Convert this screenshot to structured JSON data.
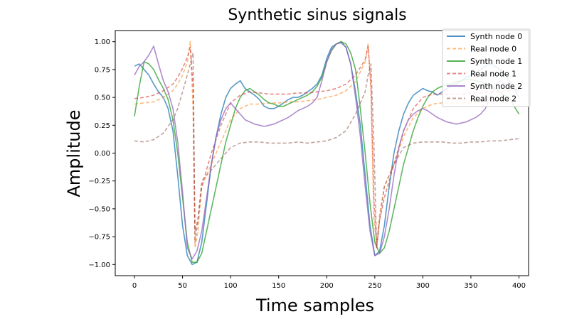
{
  "chart_data": {
    "type": "line",
    "title": "Synthetic sinus signals",
    "xlabel": "Time samples",
    "ylabel": "Amplitude",
    "xlim": [
      -20,
      410
    ],
    "ylim": [
      -1.1,
      1.1
    ],
    "xticks": [
      0,
      50,
      100,
      150,
      200,
      250,
      300,
      350,
      400
    ],
    "yticks": [
      -1.0,
      -0.75,
      -0.5,
      -0.25,
      0.0,
      0.25,
      0.5,
      0.75,
      1.0
    ],
    "xtick_labels": [
      "0",
      "50",
      "100",
      "150",
      "200",
      "250",
      "300",
      "350",
      "400"
    ],
    "ytick_labels": [
      "−1.00",
      "−0.75",
      "−0.50",
      "−0.25",
      "0.00",
      "0.25",
      "0.50",
      "0.75",
      "1.00"
    ],
    "grid": false,
    "legend_position": "top-right",
    "series": [
      {
        "name": "Synth node 0",
        "color": "#1f77b4",
        "style": "solid",
        "x": [
          0,
          5,
          10,
          15,
          20,
          25,
          30,
          35,
          40,
          45,
          50,
          55,
          60,
          65,
          70,
          75,
          80,
          85,
          90,
          95,
          100,
          105,
          110,
          115,
          120,
          125,
          130,
          135,
          140,
          145,
          150,
          155,
          160,
          165,
          170,
          175,
          180,
          185,
          190,
          195,
          200,
          205,
          210,
          215,
          220,
          225,
          230,
          235,
          240,
          245,
          250,
          255,
          260,
          265,
          270,
          275,
          280,
          285,
          290,
          295,
          300,
          305,
          310,
          315,
          320,
          325,
          330,
          335,
          340,
          345,
          350,
          355,
          360,
          365,
          370,
          375,
          380,
          385,
          390,
          395,
          400
        ],
        "values": [
          0.78,
          0.8,
          0.75,
          0.7,
          0.62,
          0.55,
          0.5,
          0.4,
          0.2,
          -0.2,
          -0.65,
          -0.92,
          -1.0,
          -0.98,
          -0.8,
          -0.45,
          -0.1,
          0.15,
          0.35,
          0.5,
          0.58,
          0.62,
          0.65,
          0.58,
          0.55,
          0.52,
          0.48,
          0.42,
          0.4,
          0.4,
          0.42,
          0.45,
          0.48,
          0.5,
          0.5,
          0.52,
          0.55,
          0.58,
          0.62,
          0.7,
          0.85,
          0.95,
          0.98,
          1.0,
          0.95,
          0.8,
          0.55,
          0.25,
          -0.2,
          -0.65,
          -0.92,
          -0.88,
          -0.65,
          -0.3,
          0.0,
          0.2,
          0.35,
          0.45,
          0.52,
          0.55,
          0.58,
          0.56,
          0.55,
          0.52,
          0.55,
          0.58,
          0.6,
          0.62,
          0.65,
          0.68,
          0.7,
          0.72,
          0.75,
          0.78,
          0.8,
          0.78,
          0.75,
          0.7,
          0.65,
          0.58,
          0.5
        ]
      },
      {
        "name": "Real node 0",
        "color": "#ff7f0e",
        "style": "dashed",
        "x": [
          0,
          10,
          20,
          30,
          40,
          45,
          50,
          55,
          58,
          61,
          63,
          66,
          70,
          80,
          90,
          100,
          110,
          120,
          130,
          140,
          150,
          160,
          170,
          180,
          190,
          200,
          210,
          220,
          230,
          240,
          243,
          246,
          249,
          252,
          255,
          260,
          270,
          280,
          290,
          300,
          310,
          320,
          330,
          340,
          350,
          360,
          370,
          380,
          390,
          400
        ],
        "values": [
          0.44,
          0.45,
          0.46,
          0.5,
          0.56,
          0.62,
          0.7,
          0.82,
          1.0,
          0.4,
          -0.85,
          -0.7,
          -0.3,
          -0.1,
          0.1,
          0.3,
          0.4,
          0.44,
          0.44,
          0.45,
          0.45,
          0.46,
          0.46,
          0.47,
          0.48,
          0.5,
          0.52,
          0.56,
          0.64,
          0.82,
          0.98,
          0.6,
          -0.6,
          -0.8,
          -0.55,
          -0.3,
          -0.1,
          0.15,
          0.32,
          0.4,
          0.44,
          0.45,
          0.45,
          0.45,
          0.45,
          0.46,
          0.46,
          0.47,
          0.48,
          0.5
        ]
      },
      {
        "name": "Synth node 1",
        "color": "#2ca02c",
        "style": "solid",
        "x": [
          0,
          5,
          10,
          15,
          20,
          25,
          30,
          35,
          40,
          45,
          50,
          55,
          60,
          65,
          70,
          75,
          80,
          85,
          90,
          95,
          100,
          105,
          110,
          115,
          120,
          125,
          130,
          135,
          140,
          145,
          150,
          155,
          160,
          165,
          170,
          175,
          180,
          185,
          190,
          195,
          200,
          205,
          210,
          215,
          220,
          225,
          230,
          235,
          240,
          245,
          250,
          255,
          260,
          265,
          270,
          275,
          280,
          285,
          290,
          295,
          300,
          305,
          310,
          315,
          320,
          325,
          330,
          335,
          340,
          345,
          350,
          355,
          360,
          365,
          370,
          375,
          380,
          385,
          390,
          395,
          400
        ],
        "values": [
          0.33,
          0.6,
          0.82,
          0.8,
          0.75,
          0.66,
          0.58,
          0.48,
          0.3,
          0.0,
          -0.4,
          -0.8,
          -0.98,
          -0.98,
          -0.9,
          -0.7,
          -0.5,
          -0.3,
          -0.1,
          0.1,
          0.25,
          0.4,
          0.5,
          0.56,
          0.58,
          0.55,
          0.52,
          0.48,
          0.45,
          0.44,
          0.42,
          0.42,
          0.44,
          0.46,
          0.48,
          0.5,
          0.52,
          0.55,
          0.6,
          0.68,
          0.82,
          0.92,
          0.98,
          1.0,
          0.98,
          0.9,
          0.75,
          0.4,
          0.0,
          -0.45,
          -0.8,
          -0.9,
          -0.85,
          -0.7,
          -0.5,
          -0.3,
          -0.1,
          0.05,
          0.2,
          0.32,
          0.42,
          0.5,
          0.55,
          0.58,
          0.6,
          0.62,
          0.62,
          0.64,
          0.65,
          0.66,
          0.66,
          0.65,
          0.64,
          0.62,
          0.6,
          0.58,
          0.55,
          0.52,
          0.5,
          0.42,
          0.35
        ]
      },
      {
        "name": "Real node 1",
        "color": "#d62728",
        "style": "dashed",
        "x": [
          0,
          10,
          20,
          30,
          40,
          45,
          50,
          55,
          58,
          61,
          63,
          66,
          70,
          80,
          90,
          100,
          110,
          120,
          130,
          140,
          150,
          160,
          170,
          180,
          190,
          200,
          210,
          220,
          230,
          240,
          243,
          246,
          249,
          252,
          255,
          260,
          270,
          280,
          290,
          300,
          310,
          320,
          330,
          340,
          350,
          360,
          370,
          380,
          390,
          400
        ],
        "values": [
          0.49,
          0.5,
          0.52,
          0.56,
          0.62,
          0.68,
          0.76,
          0.86,
          0.95,
          0.6,
          -0.7,
          -0.6,
          -0.3,
          0.0,
          0.25,
          0.45,
          0.52,
          0.55,
          0.54,
          0.53,
          0.53,
          0.53,
          0.54,
          0.54,
          0.55,
          0.56,
          0.58,
          0.62,
          0.7,
          0.84,
          0.96,
          0.6,
          -0.4,
          -0.85,
          -0.6,
          -0.4,
          -0.1,
          0.2,
          0.4,
          0.5,
          0.53,
          0.53,
          0.53,
          0.53,
          0.54,
          0.54,
          0.55,
          0.55,
          0.56,
          0.57
        ]
      },
      {
        "name": "Synth node 2",
        "color": "#9467bd",
        "style": "solid",
        "x": [
          0,
          5,
          10,
          15,
          20,
          25,
          30,
          35,
          40,
          45,
          50,
          55,
          60,
          65,
          70,
          75,
          80,
          85,
          90,
          95,
          100,
          105,
          110,
          115,
          120,
          125,
          130,
          135,
          140,
          145,
          150,
          155,
          160,
          165,
          170,
          175,
          180,
          185,
          190,
          195,
          200,
          205,
          210,
          215,
          220,
          225,
          230,
          235,
          240,
          245,
          250,
          255,
          260,
          265,
          270,
          275,
          280,
          285,
          290,
          295,
          300,
          305,
          310,
          315,
          320,
          325,
          330,
          335,
          340,
          345,
          350,
          355,
          360,
          365,
          370,
          375,
          380,
          385,
          390,
          395,
          400
        ],
        "values": [
          0.7,
          0.78,
          0.82,
          0.88,
          0.96,
          0.8,
          0.65,
          0.55,
          0.4,
          0.1,
          -0.35,
          -0.85,
          -0.95,
          -0.88,
          -0.7,
          -0.4,
          -0.1,
          0.15,
          0.3,
          0.4,
          0.45,
          0.4,
          0.35,
          0.3,
          0.28,
          0.26,
          0.25,
          0.24,
          0.25,
          0.26,
          0.28,
          0.3,
          0.32,
          0.35,
          0.38,
          0.4,
          0.42,
          0.45,
          0.5,
          0.65,
          0.82,
          0.93,
          0.98,
          0.99,
          0.95,
          0.8,
          0.5,
          0.15,
          -0.3,
          -0.7,
          -0.92,
          -0.9,
          -0.75,
          -0.5,
          -0.2,
          0.05,
          0.2,
          0.3,
          0.35,
          0.38,
          0.4,
          0.38,
          0.35,
          0.32,
          0.3,
          0.28,
          0.27,
          0.26,
          0.27,
          0.28,
          0.3,
          0.32,
          0.35,
          0.4,
          0.5,
          0.6,
          0.65,
          0.62,
          0.6,
          0.58,
          0.56
        ]
      },
      {
        "name": "Real node 2",
        "color": "#8c564b",
        "style": "dashed",
        "x": [
          0,
          10,
          20,
          30,
          40,
          45,
          50,
          55,
          58,
          61,
          63,
          66,
          70,
          80,
          90,
          100,
          110,
          120,
          130,
          140,
          150,
          160,
          170,
          180,
          190,
          200,
          210,
          220,
          230,
          240,
          243,
          246,
          249,
          252,
          255,
          260,
          270,
          280,
          290,
          300,
          310,
          320,
          330,
          340,
          350,
          360,
          370,
          380,
          390,
          400
        ],
        "values": [
          0.11,
          0.1,
          0.12,
          0.18,
          0.3,
          0.4,
          0.55,
          0.7,
          0.8,
          0.9,
          -0.8,
          -0.6,
          -0.25,
          -0.15,
          -0.05,
          0.05,
          0.09,
          0.1,
          0.1,
          0.09,
          0.09,
          0.09,
          0.1,
          0.09,
          0.1,
          0.11,
          0.14,
          0.2,
          0.35,
          0.55,
          0.7,
          0.8,
          0.1,
          -0.85,
          -0.6,
          -0.3,
          -0.1,
          0.05,
          0.09,
          0.1,
          0.1,
          0.1,
          0.09,
          0.09,
          0.1,
          0.1,
          0.11,
          0.11,
          0.12,
          0.13
        ]
      }
    ]
  }
}
